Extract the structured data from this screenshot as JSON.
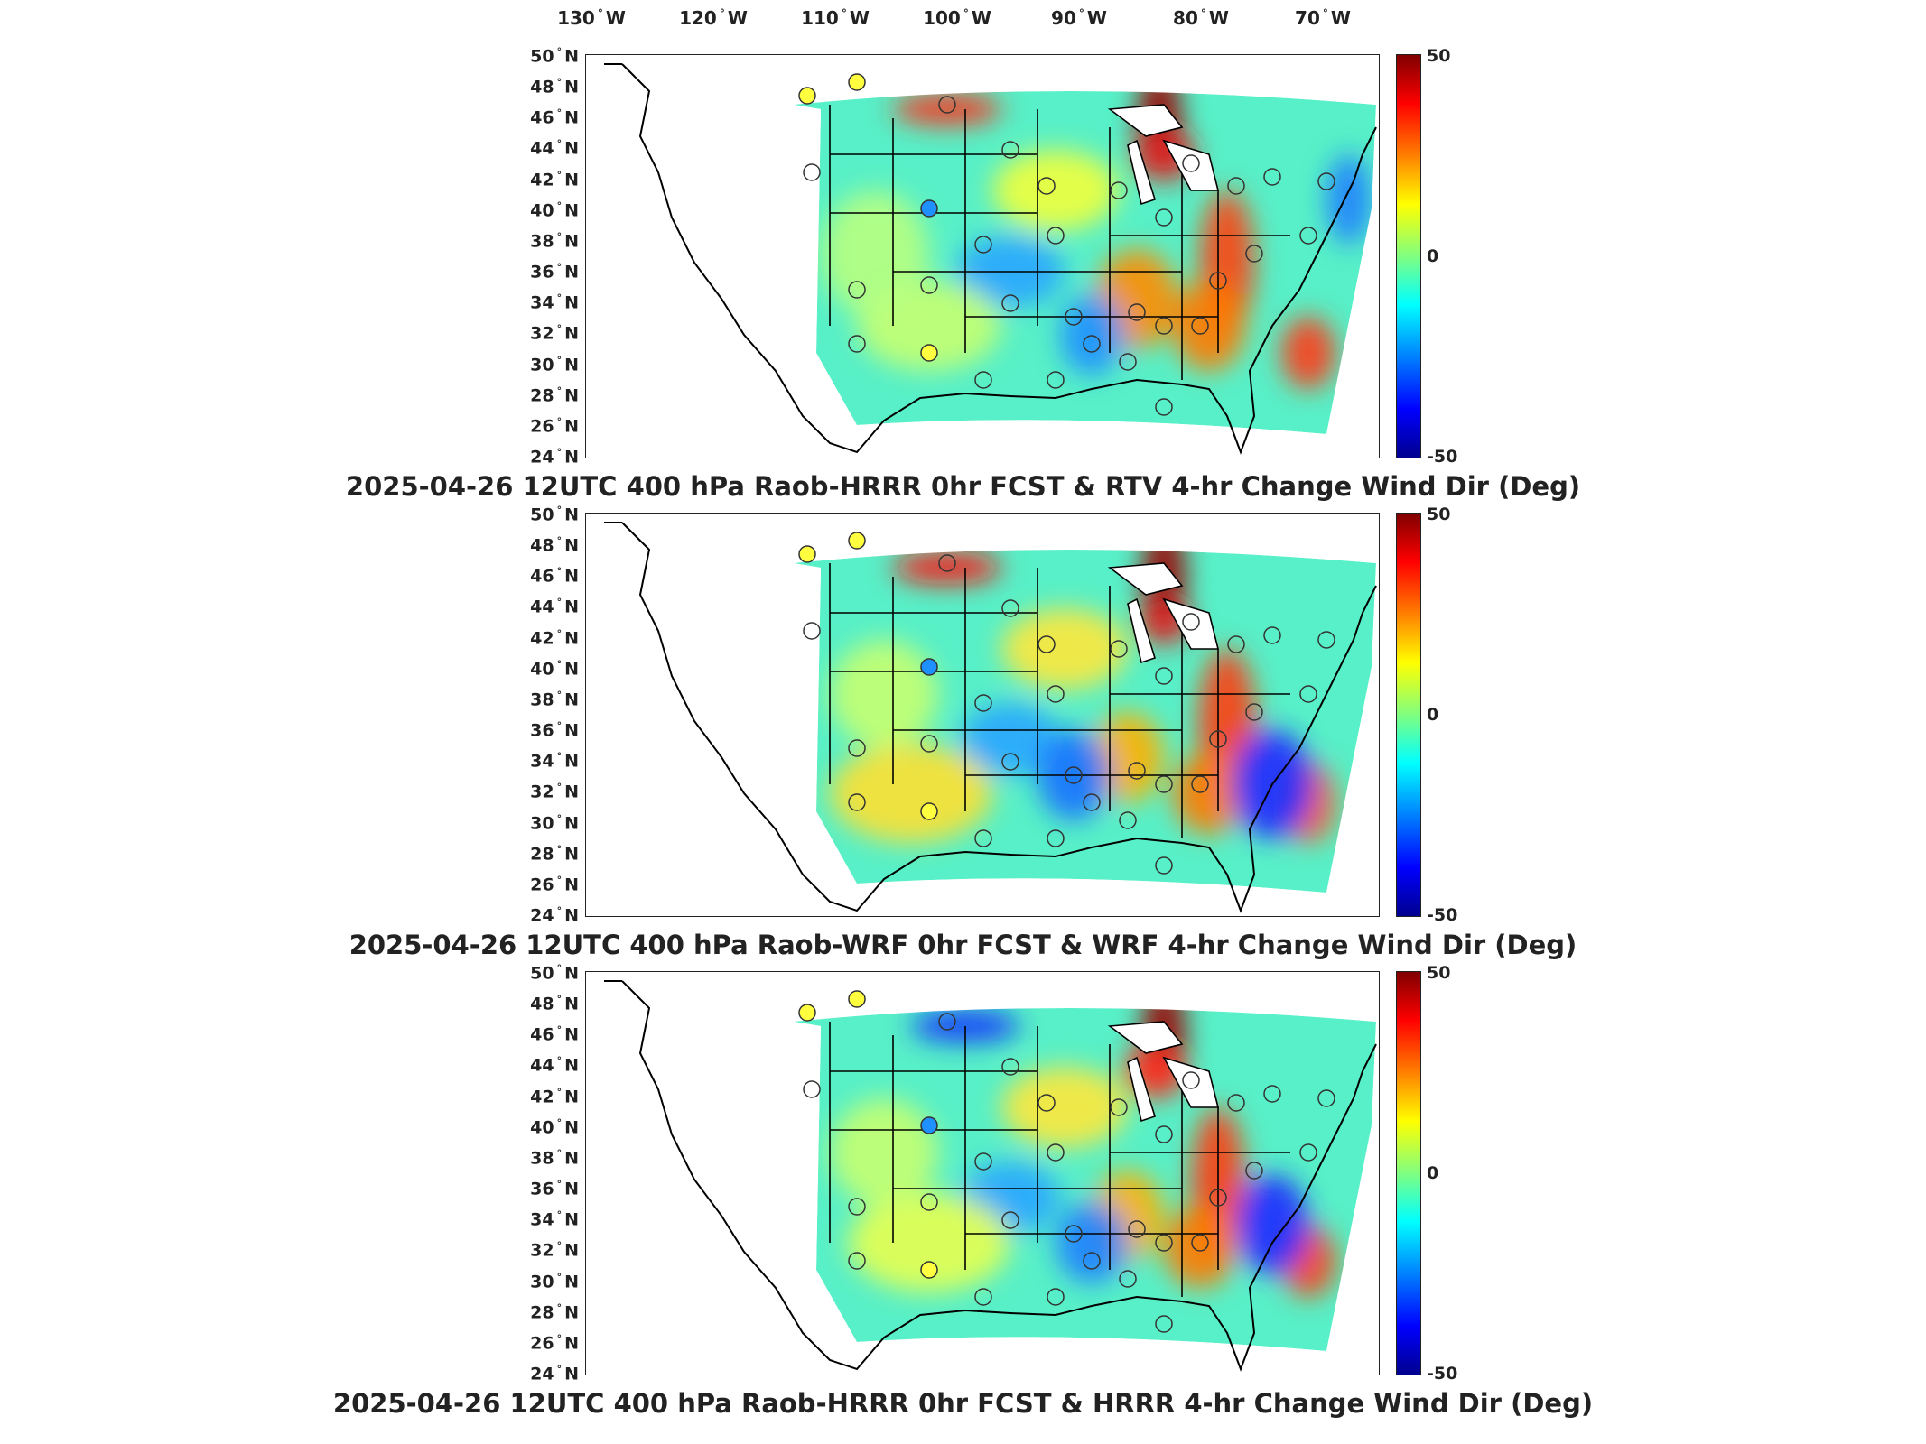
{
  "longitude_labels": [
    {
      "deg": "130",
      "hemi": "W"
    },
    {
      "deg": "120",
      "hemi": "W"
    },
    {
      "deg": "110",
      "hemi": "W"
    },
    {
      "deg": "100",
      "hemi": "W"
    },
    {
      "deg": "90",
      "hemi": "W"
    },
    {
      "deg": "80",
      "hemi": "W"
    },
    {
      "deg": "70",
      "hemi": "W"
    }
  ],
  "latitude_labels": [
    {
      "deg": "50",
      "hemi": "N"
    },
    {
      "deg": "48",
      "hemi": "N"
    },
    {
      "deg": "46",
      "hemi": "N"
    },
    {
      "deg": "44",
      "hemi": "N"
    },
    {
      "deg": "42",
      "hemi": "N"
    },
    {
      "deg": "40",
      "hemi": "N"
    },
    {
      "deg": "38",
      "hemi": "N"
    },
    {
      "deg": "36",
      "hemi": "N"
    },
    {
      "deg": "34",
      "hemi": "N"
    },
    {
      "deg": "32",
      "hemi": "N"
    },
    {
      "deg": "30",
      "hemi": "N"
    },
    {
      "deg": "28",
      "hemi": "N"
    },
    {
      "deg": "26",
      "hemi": "N"
    },
    {
      "deg": "24",
      "hemi": "N"
    }
  ],
  "colorbar": {
    "max": "50",
    "mid": "0",
    "min": "-50"
  },
  "colors": {
    "max": "#800000",
    "mid": "#80ff80",
    "min": "#00008f"
  },
  "panels": [
    {
      "title": "2025-04-26 12UTC 400 hPa Raob-HRRR 0hr FCST & RTV 4-hr Change Wind Dir (Deg)"
    },
    {
      "title": "2025-04-26 12UTC 400 hPa Raob-WRF 0hr FCST & WRF 4-hr Change Wind Dir (Deg)"
    },
    {
      "title": "2025-04-26 12UTC 400 hPa Raob-HRRR 0hr FCST & HRRR 4-hr Change Wind Dir (Deg)"
    }
  ]
}
